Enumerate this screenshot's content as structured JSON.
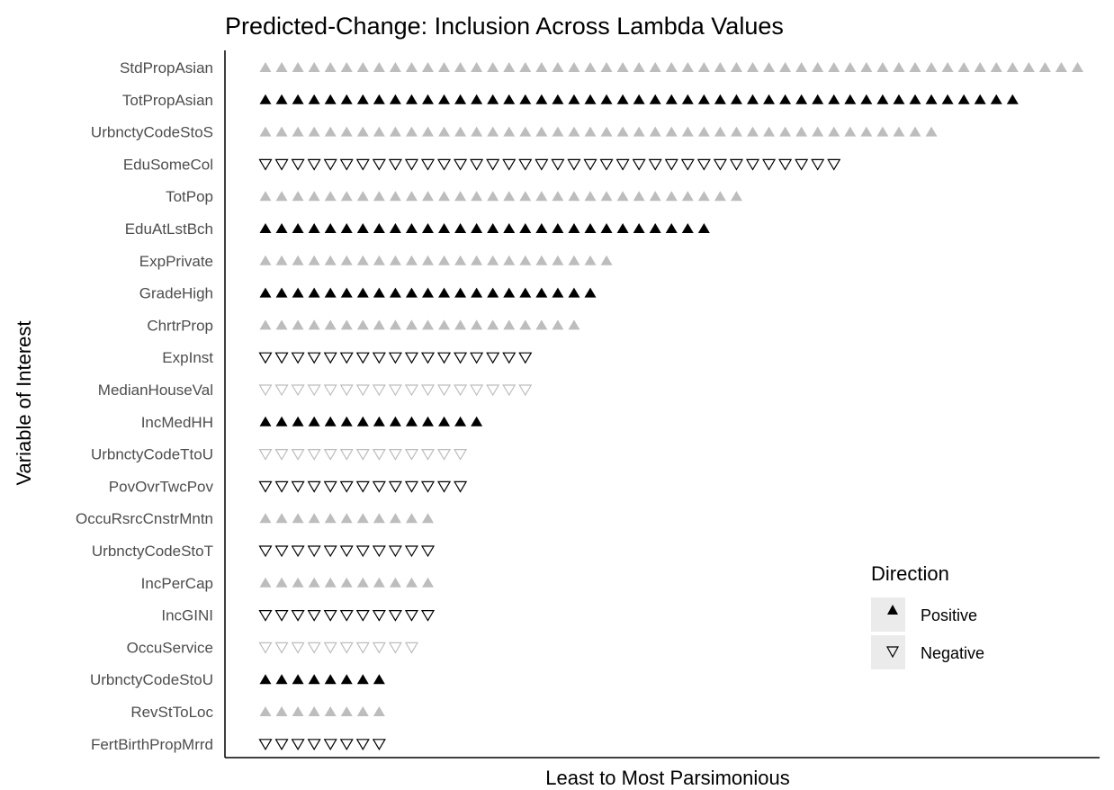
{
  "chart_data": {
    "type": "scatter",
    "title": "Predicted-Change: Inclusion Across Lambda Values",
    "xlabel": "Least to Most Parsimonious",
    "ylabel": "Variable of Interest",
    "grid": false,
    "legend": {
      "title": "Direction",
      "placement": "right",
      "entries": [
        {
          "label": "Positive",
          "shape": "filled-up-triangle"
        },
        {
          "label": "Negative",
          "shape": "open-down-triangle"
        }
      ]
    },
    "colors": {
      "primary": "#000000",
      "alternate": "#bdbdbd",
      "legend_key_bg": "#ebebeb"
    },
    "rows": [
      {
        "variable": "StdPropAsian",
        "count": 51,
        "direction": "Positive",
        "shade": "alternate"
      },
      {
        "variable": "TotPropAsian",
        "count": 47,
        "direction": "Positive",
        "shade": "primary"
      },
      {
        "variable": "UrbnctyCodeStoS",
        "count": 42,
        "direction": "Positive",
        "shade": "alternate"
      },
      {
        "variable": "EduSomeCol",
        "count": 36,
        "direction": "Negative",
        "shade": "primary"
      },
      {
        "variable": "TotPop",
        "count": 30,
        "direction": "Positive",
        "shade": "alternate"
      },
      {
        "variable": "EduAtLstBch",
        "count": 28,
        "direction": "Positive",
        "shade": "primary"
      },
      {
        "variable": "ExpPrivate",
        "count": 22,
        "direction": "Positive",
        "shade": "alternate"
      },
      {
        "variable": "GradeHigh",
        "count": 21,
        "direction": "Positive",
        "shade": "primary"
      },
      {
        "variable": "ChrtrProp",
        "count": 20,
        "direction": "Positive",
        "shade": "alternate"
      },
      {
        "variable": "ExpInst",
        "count": 17,
        "direction": "Negative",
        "shade": "primary"
      },
      {
        "variable": "MedianHouseVal",
        "count": 17,
        "direction": "Negative",
        "shade": "alternate"
      },
      {
        "variable": "IncMedHH",
        "count": 14,
        "direction": "Positive",
        "shade": "primary"
      },
      {
        "variable": "UrbnctyCodeTtoU",
        "count": 13,
        "direction": "Negative",
        "shade": "alternate"
      },
      {
        "variable": "PovOvrTwcPov",
        "count": 13,
        "direction": "Negative",
        "shade": "primary"
      },
      {
        "variable": "OccuRsrcCnstrMntn",
        "count": 11,
        "direction": "Positive",
        "shade": "alternate"
      },
      {
        "variable": "UrbnctyCodeStoT",
        "count": 11,
        "direction": "Negative",
        "shade": "primary"
      },
      {
        "variable": "IncPerCap",
        "count": 11,
        "direction": "Positive",
        "shade": "alternate"
      },
      {
        "variable": "IncGINI",
        "count": 11,
        "direction": "Negative",
        "shade": "primary"
      },
      {
        "variable": "OccuService",
        "count": 10,
        "direction": "Negative",
        "shade": "alternate"
      },
      {
        "variable": "UrbnctyCodeStoU",
        "count": 8,
        "direction": "Positive",
        "shade": "primary"
      },
      {
        "variable": "RevStToLoc",
        "count": 8,
        "direction": "Positive",
        "shade": "alternate"
      },
      {
        "variable": "FertBirthPropMrrd",
        "count": 8,
        "direction": "Negative",
        "shade": "primary"
      }
    ]
  }
}
